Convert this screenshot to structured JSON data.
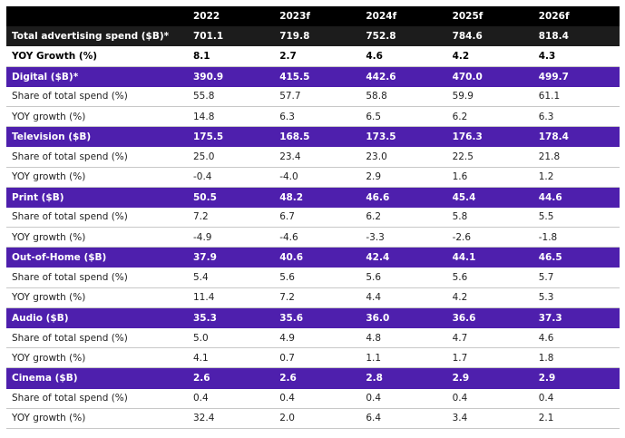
{
  "table": {
    "columns": [
      "2022",
      "2023f",
      "2024f",
      "2025f",
      "2026f"
    ],
    "total": {
      "label": "Total advertising spend ($B)*",
      "values": [
        "701.1",
        "719.8",
        "752.8",
        "784.6",
        "818.4"
      ]
    },
    "growth": {
      "label": "YOY Growth (%)",
      "values": [
        "8.1",
        "2.7",
        "4.6",
        "4.2",
        "4.3"
      ]
    },
    "groups": [
      {
        "label": "Digital ($B)*",
        "values": [
          "390.9",
          "415.5",
          "442.6",
          "470.0",
          "499.7"
        ],
        "rows": [
          {
            "label": "Share of total spend (%)",
            "values": [
              "55.8",
              "57.7",
              "58.8",
              "59.9",
              "61.1"
            ]
          },
          {
            "label": "YOY growth (%)",
            "values": [
              "14.8",
              "6.3",
              "6.5",
              "6.2",
              "6.3"
            ]
          }
        ]
      },
      {
        "label": "Television ($B)",
        "values": [
          "175.5",
          "168.5",
          "173.5",
          "176.3",
          "178.4"
        ],
        "rows": [
          {
            "label": "Share of total spend (%)",
            "values": [
              "25.0",
              "23.4",
              "23.0",
              "22.5",
              "21.8"
            ]
          },
          {
            "label": "YOY growth (%)",
            "values": [
              "-0.4",
              "-4.0",
              "2.9",
              "1.6",
              "1.2"
            ]
          }
        ]
      },
      {
        "label": "Print ($B)",
        "values": [
          "50.5",
          "48.2",
          "46.6",
          "45.4",
          "44.6"
        ],
        "rows": [
          {
            "label": "Share of total spend (%)",
            "values": [
              "7.2",
              "6.7",
              "6.2",
              "5.8",
              "5.5"
            ]
          },
          {
            "label": "YOY growth (%)",
            "values": [
              "-4.9",
              "-4.6",
              "-3.3",
              "-2.6",
              "-1.8"
            ]
          }
        ]
      },
      {
        "label": "Out-of-Home ($B)",
        "values": [
          "37.9",
          "40.6",
          "42.4",
          "44.1",
          "46.5"
        ],
        "rows": [
          {
            "label": "Share of total spend (%)",
            "values": [
              "5.4",
              "5.6",
              "5.6",
              "5.6",
              "5.7"
            ]
          },
          {
            "label": "YOY growth (%)",
            "values": [
              "11.4",
              "7.2",
              "4.4",
              "4.2",
              "5.3"
            ]
          }
        ]
      },
      {
        "label": "Audio ($B)",
        "values": [
          "35.3",
          "35.6",
          "36.0",
          "36.6",
          "37.3"
        ],
        "rows": [
          {
            "label": "Share of total spend (%)",
            "values": [
              "5.0",
              "4.9",
              "4.8",
              "4.7",
              "4.6"
            ]
          },
          {
            "label": "YOY growth (%)",
            "values": [
              "4.1",
              "0.7",
              "1.1",
              "1.7",
              "1.8"
            ]
          }
        ]
      },
      {
        "label": "Cinema ($B)",
        "values": [
          "2.6",
          "2.6",
          "2.8",
          "2.9",
          "2.9"
        ],
        "rows": [
          {
            "label": "Share of total spend (%)",
            "values": [
              "0.4",
              "0.4",
              "0.4",
              "0.4",
              "0.4"
            ]
          },
          {
            "label": "YOY growth (%)",
            "values": [
              "32.4",
              "2.0",
              "6.4",
              "3.4",
              "2.1"
            ]
          }
        ]
      }
    ]
  }
}
